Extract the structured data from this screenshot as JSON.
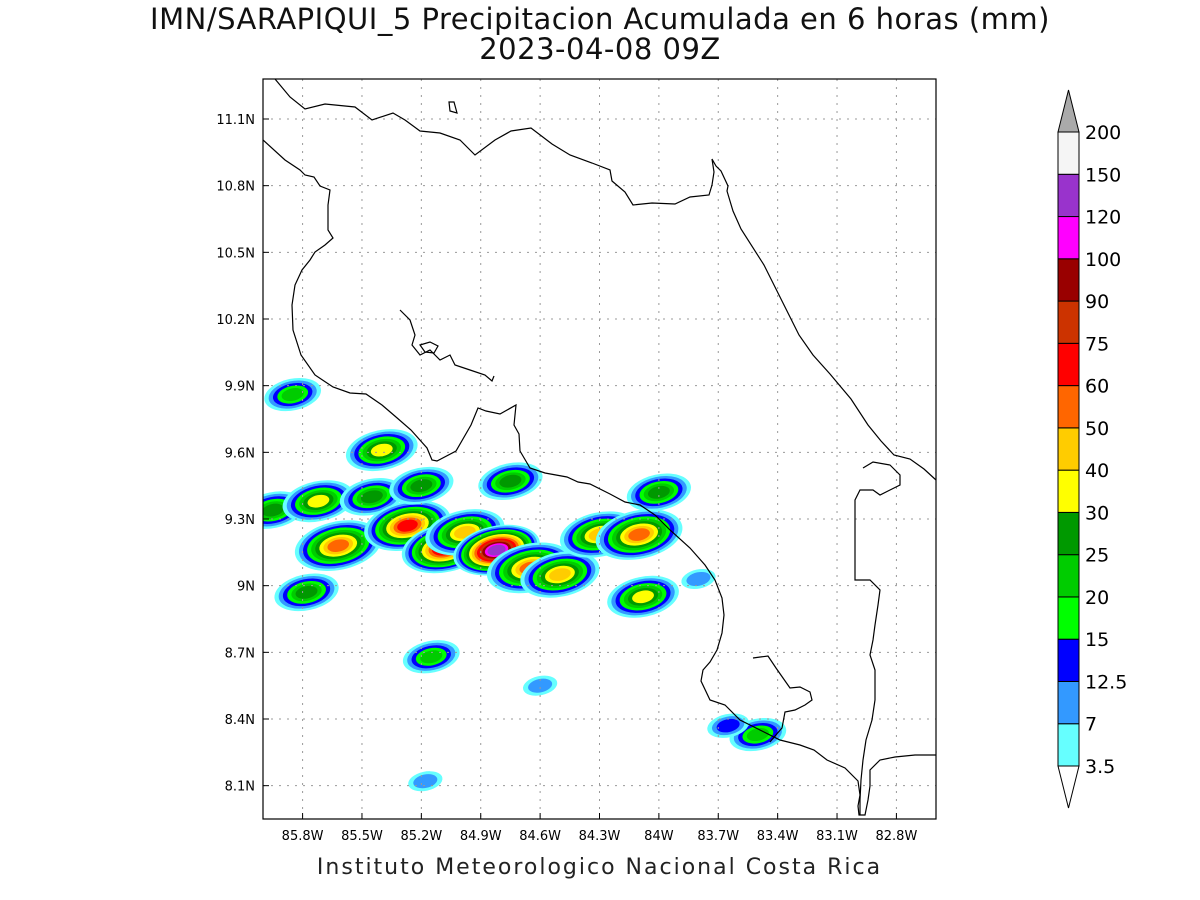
{
  "title": {
    "line1": "IMN/SARAPIQUI_5 Precipitacion Acumulada en 6 horas (mm)",
    "line2": "2023-04-08 09Z"
  },
  "footer": "Instituto Meteorologico Nacional Costa Rica",
  "axes": {
    "lon_ticks": [
      {
        "value": -85.8,
        "label": "85.8W"
      },
      {
        "value": -85.5,
        "label": "85.5W"
      },
      {
        "value": -85.2,
        "label": "85.2W"
      },
      {
        "value": -84.9,
        "label": "84.9W"
      },
      {
        "value": -84.6,
        "label": "84.6W"
      },
      {
        "value": -84.3,
        "label": "84.3W"
      },
      {
        "value": -84.0,
        "label": "84W"
      },
      {
        "value": -83.7,
        "label": "83.7W"
      },
      {
        "value": -83.4,
        "label": "83.4W"
      },
      {
        "value": -83.1,
        "label": "83.1W"
      },
      {
        "value": -82.8,
        "label": "82.8W"
      }
    ],
    "lat_ticks": [
      {
        "value": 11.1,
        "label": "11.1N"
      },
      {
        "value": 10.8,
        "label": "10.8N"
      },
      {
        "value": 10.5,
        "label": "10.5N"
      },
      {
        "value": 10.2,
        "label": "10.2N"
      },
      {
        "value": 9.9,
        "label": "9.9N"
      },
      {
        "value": 9.6,
        "label": "9.6N"
      },
      {
        "value": 9.3,
        "label": "9.3N"
      },
      {
        "value": 9.0,
        "label": "9N"
      },
      {
        "value": 8.7,
        "label": "8.7N"
      },
      {
        "value": 8.4,
        "label": "8.4N"
      },
      {
        "value": 8.1,
        "label": "8.1N"
      }
    ],
    "lon_range": [
      -86.0,
      -82.6
    ],
    "lat_range": [
      7.95,
      11.28
    ],
    "grid": true
  },
  "colorbar": {
    "levels": [
      {
        "label": "3.5",
        "color": "#66ffff"
      },
      {
        "label": "7",
        "color": "#3399ff"
      },
      {
        "label": "12.5",
        "color": "#0000ff"
      },
      {
        "label": "15",
        "color": "#00ff00"
      },
      {
        "label": "20",
        "color": "#00cc00"
      },
      {
        "label": "25",
        "color": "#009900"
      },
      {
        "label": "30",
        "color": "#ffff00"
      },
      {
        "label": "40",
        "color": "#ffcc00"
      },
      {
        "label": "50",
        "color": "#ff6600"
      },
      {
        "label": "60",
        "color": "#ff0000"
      },
      {
        "label": "75",
        "color": "#cc3300"
      },
      {
        "label": "90",
        "color": "#990000"
      },
      {
        "label": "100",
        "color": "#ff00ff"
      },
      {
        "label": "120",
        "color": "#9933cc"
      },
      {
        "label": "150",
        "color": "#f5f5f5"
      },
      {
        "label": "200",
        "color": "#aaaaaa"
      }
    ]
  },
  "precip_cells": [
    {
      "lon": -85.95,
      "lat": 9.34,
      "v": 25
    },
    {
      "lon": -85.85,
      "lat": 9.86,
      "v": 20
    },
    {
      "lon": -85.72,
      "lat": 9.38,
      "v": 30
    },
    {
      "lon": -85.62,
      "lat": 9.18,
      "v": 50
    },
    {
      "lon": -85.45,
      "lat": 9.4,
      "v": 25
    },
    {
      "lon": -85.4,
      "lat": 9.61,
      "v": 30
    },
    {
      "lon": -85.27,
      "lat": 9.27,
      "v": 60
    },
    {
      "lon": -85.2,
      "lat": 9.45,
      "v": 25
    },
    {
      "lon": -85.08,
      "lat": 9.17,
      "v": 75
    },
    {
      "lon": -84.98,
      "lat": 9.24,
      "v": 40
    },
    {
      "lon": -84.82,
      "lat": 9.16,
      "v": 120
    },
    {
      "lon": -84.75,
      "lat": 9.47,
      "v": 25
    },
    {
      "lon": -84.65,
      "lat": 9.08,
      "v": 50
    },
    {
      "lon": -84.5,
      "lat": 9.05,
      "v": 40
    },
    {
      "lon": -84.3,
      "lat": 9.23,
      "v": 40
    },
    {
      "lon": -84.1,
      "lat": 9.23,
      "v": 50
    },
    {
      "lon": -84.0,
      "lat": 9.42,
      "v": 25
    },
    {
      "lon": -84.08,
      "lat": 8.95,
      "v": 30
    },
    {
      "lon": -85.78,
      "lat": 8.97,
      "v": 25
    },
    {
      "lon": -85.15,
      "lat": 8.68,
      "v": 20
    },
    {
      "lon": -84.6,
      "lat": 8.55,
      "v": 7
    },
    {
      "lon": -83.5,
      "lat": 8.33,
      "v": 20
    },
    {
      "lon": -83.65,
      "lat": 8.37,
      "v": 12.5
    },
    {
      "lon": -83.8,
      "lat": 9.03,
      "v": 7
    },
    {
      "lon": -85.18,
      "lat": 8.12,
      "v": 7
    }
  ]
}
